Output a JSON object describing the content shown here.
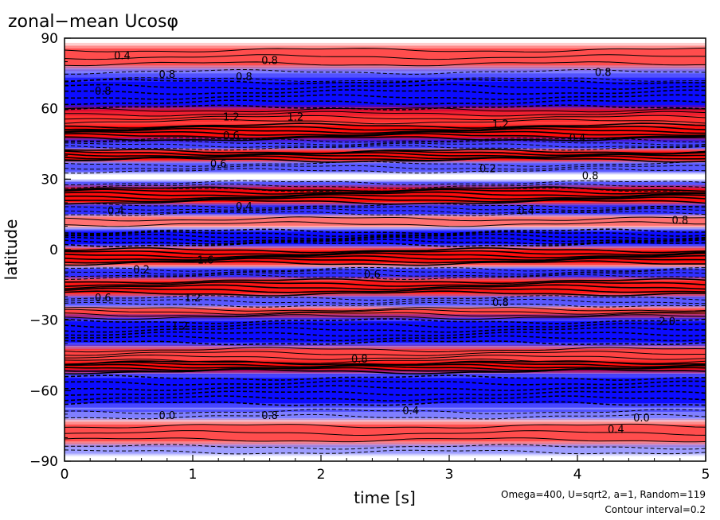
{
  "chart_data": {
    "type": "heatmap",
    "title": "zonal−mean Ucosφ",
    "xlabel": "time [s]",
    "ylabel": "latitude",
    "xlim": [
      0,
      5
    ],
    "ylim": [
      -90,
      90
    ],
    "x_ticks": [
      {
        "value": 0,
        "label": "0"
      },
      {
        "value": 1,
        "label": "1"
      },
      {
        "value": 2,
        "label": "2"
      },
      {
        "value": 3,
        "label": "3"
      },
      {
        "value": 4,
        "label": "4"
      },
      {
        "value": 5,
        "label": "5"
      }
    ],
    "y_ticks": [
      {
        "value": 90,
        "label": "90"
      },
      {
        "value": 60,
        "label": "60"
      },
      {
        "value": 30,
        "label": "30"
      },
      {
        "value": 0,
        "label": "0"
      },
      {
        "value": -30,
        "label": "−30"
      },
      {
        "value": -60,
        "label": "−60"
      },
      {
        "value": -90,
        "label": "−90"
      }
    ],
    "annotations": [
      "Omega=400, U=sqrt2, a=1, Random=119",
      "Contour interval=0.2"
    ],
    "colors": {
      "positive": "#ff0000",
      "negative": "#0000ff",
      "zero": "#ffffff",
      "contour": "#000000"
    },
    "contour_interval": 0.2,
    "bands": [
      {
        "lat": 82,
        "sign": 1,
        "amp": 0.55,
        "width": 4
      },
      {
        "lat": 74,
        "sign": -1,
        "amp": 0.35,
        "width": 3
      },
      {
        "lat": 66,
        "sign": -1,
        "amp": 1.0,
        "width": 6
      },
      {
        "lat": 57,
        "sign": 1,
        "amp": 0.7,
        "width": 3
      },
      {
        "lat": 50,
        "sign": 1,
        "amp": 1.0,
        "width": 3
      },
      {
        "lat": 45,
        "sign": -1,
        "amp": 0.6,
        "width": 2
      },
      {
        "lat": 40,
        "sign": 1,
        "amp": 1.0,
        "width": 2
      },
      {
        "lat": 35,
        "sign": -1,
        "amp": 0.5,
        "width": 2
      },
      {
        "lat": 27,
        "sign": -1,
        "amp": 0.5,
        "width": 2
      },
      {
        "lat": 23,
        "sign": 1,
        "amp": 1.0,
        "width": 3
      },
      {
        "lat": 17,
        "sign": -1,
        "amp": 0.7,
        "width": 2
      },
      {
        "lat": 12,
        "sign": 1,
        "amp": 0.4,
        "width": 2
      },
      {
        "lat": 5,
        "sign": -1,
        "amp": 1.0,
        "width": 3
      },
      {
        "lat": -3,
        "sign": 1,
        "amp": 1.0,
        "width": 3
      },
      {
        "lat": -10,
        "sign": -1,
        "amp": 0.7,
        "width": 2
      },
      {
        "lat": -16,
        "sign": 1,
        "amp": 0.9,
        "width": 3
      },
      {
        "lat": -22,
        "sign": -1,
        "amp": 0.5,
        "width": 2
      },
      {
        "lat": -27,
        "sign": 1,
        "amp": 0.6,
        "width": 2
      },
      {
        "lat": -35,
        "sign": -1,
        "amp": 1.0,
        "width": 5
      },
      {
        "lat": -45,
        "sign": 1,
        "amp": 0.6,
        "width": 3
      },
      {
        "lat": -50,
        "sign": 1,
        "amp": 1.0,
        "width": 2
      },
      {
        "lat": -60,
        "sign": -1,
        "amp": 1.0,
        "width": 6
      },
      {
        "lat": -70,
        "sign": -1,
        "amp": 0.35,
        "width": 2
      },
      {
        "lat": -78,
        "sign": 1,
        "amp": 0.55,
        "width": 4
      },
      {
        "lat": -85,
        "sign": -1,
        "amp": 0.25,
        "width": 2
      }
    ],
    "contour_labels": [
      {
        "t": 0.45,
        "lat": 81,
        "text": "0.4"
      },
      {
        "t": 1.6,
        "lat": 79,
        "text": "0.8"
      },
      {
        "t": 0.8,
        "lat": 73,
        "text": "0.8"
      },
      {
        "t": 1.4,
        "lat": 72,
        "text": "0.8"
      },
      {
        "t": 4.2,
        "lat": 74,
        "text": "0.8"
      },
      {
        "t": 0.3,
        "lat": 66,
        "text": "0.8"
      },
      {
        "t": 1.3,
        "lat": 55,
        "text": "1.2"
      },
      {
        "t": 1.8,
        "lat": 55,
        "text": "1.2"
      },
      {
        "t": 3.4,
        "lat": 52,
        "text": "1.2"
      },
      {
        "t": 1.3,
        "lat": 47,
        "text": "0.6"
      },
      {
        "t": 4.0,
        "lat": 46,
        "text": "0.4"
      },
      {
        "t": 1.2,
        "lat": 35,
        "text": "0.6"
      },
      {
        "t": 3.3,
        "lat": 33,
        "text": "0.2"
      },
      {
        "t": 4.1,
        "lat": 30,
        "text": "0.8"
      },
      {
        "t": 1.4,
        "lat": 17,
        "text": "0.4"
      },
      {
        "t": 0.4,
        "lat": 15,
        "text": "0.4"
      },
      {
        "t": 4.8,
        "lat": 11,
        "text": "0.8"
      },
      {
        "t": 3.6,
        "lat": 15,
        "text": "0.4"
      },
      {
        "t": 1.1,
        "lat": -6,
        "text": "1.6"
      },
      {
        "t": 0.6,
        "lat": -10,
        "text": "0.2"
      },
      {
        "t": 2.4,
        "lat": -12,
        "text": "0.6"
      },
      {
        "t": 0.3,
        "lat": -22,
        "text": "0.6"
      },
      {
        "t": 1.0,
        "lat": -22,
        "text": "1.2"
      },
      {
        "t": 3.4,
        "lat": -24,
        "text": "0.8"
      },
      {
        "t": 0.9,
        "lat": -34,
        "text": "1.2"
      },
      {
        "t": 4.7,
        "lat": -32,
        "text": "2.0"
      },
      {
        "t": 2.3,
        "lat": -48,
        "text": "0.8"
      },
      {
        "t": 0.8,
        "lat": -72,
        "text": "0.0"
      },
      {
        "t": 1.6,
        "lat": -72,
        "text": "0.8"
      },
      {
        "t": 2.7,
        "lat": -70,
        "text": "0.4"
      },
      {
        "t": 4.3,
        "lat": -78,
        "text": "0.4"
      },
      {
        "t": 4.5,
        "lat": -73,
        "text": "0.0"
      }
    ]
  }
}
